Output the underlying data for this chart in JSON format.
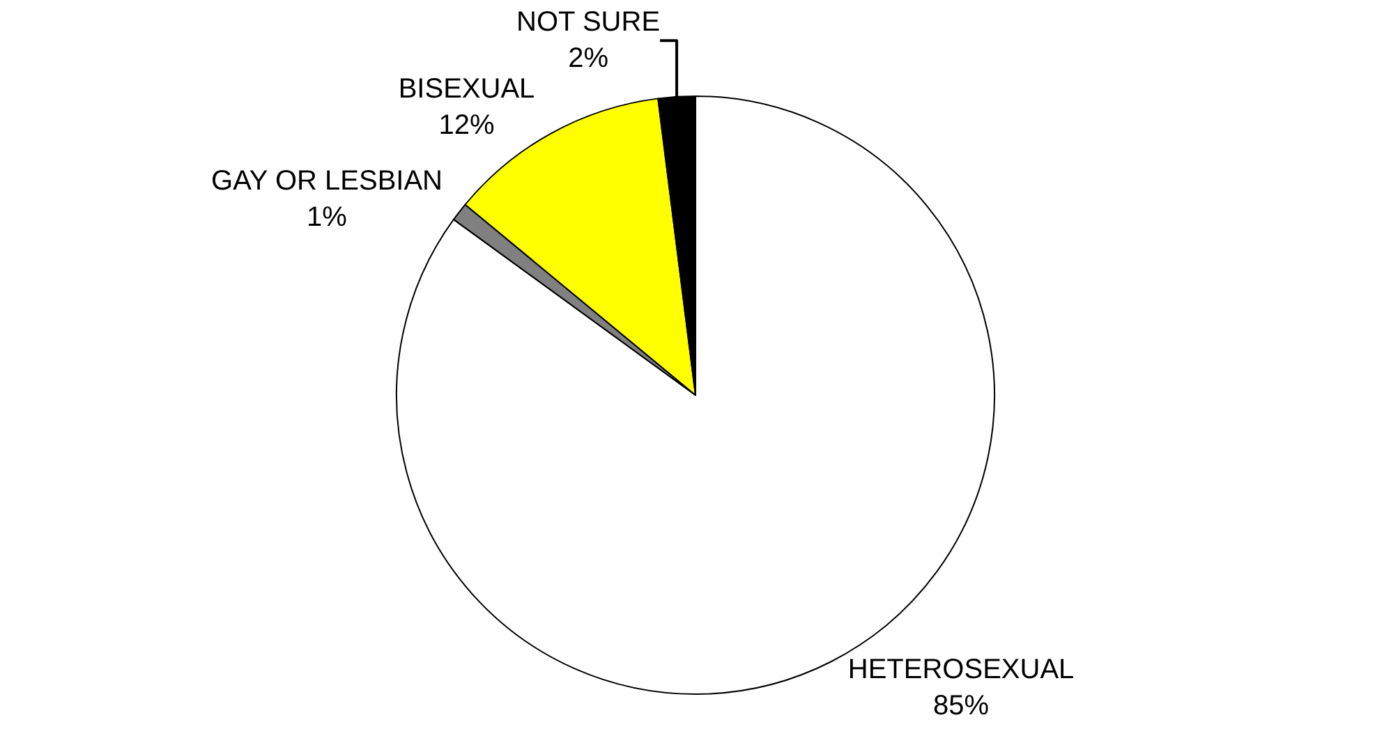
{
  "chart_data": {
    "type": "pie",
    "categories": [
      "HETEROSEXUAL",
      "GAY OR LESBIAN",
      "BISEXUAL",
      "NOT SURE"
    ],
    "values": [
      85,
      1,
      12,
      2
    ],
    "value_labels": [
      "85%",
      "1%",
      "12%",
      "2%"
    ],
    "colors": [
      "#ffffff",
      "#808080",
      "#ffff00",
      "#000000"
    ],
    "legend": false
  }
}
